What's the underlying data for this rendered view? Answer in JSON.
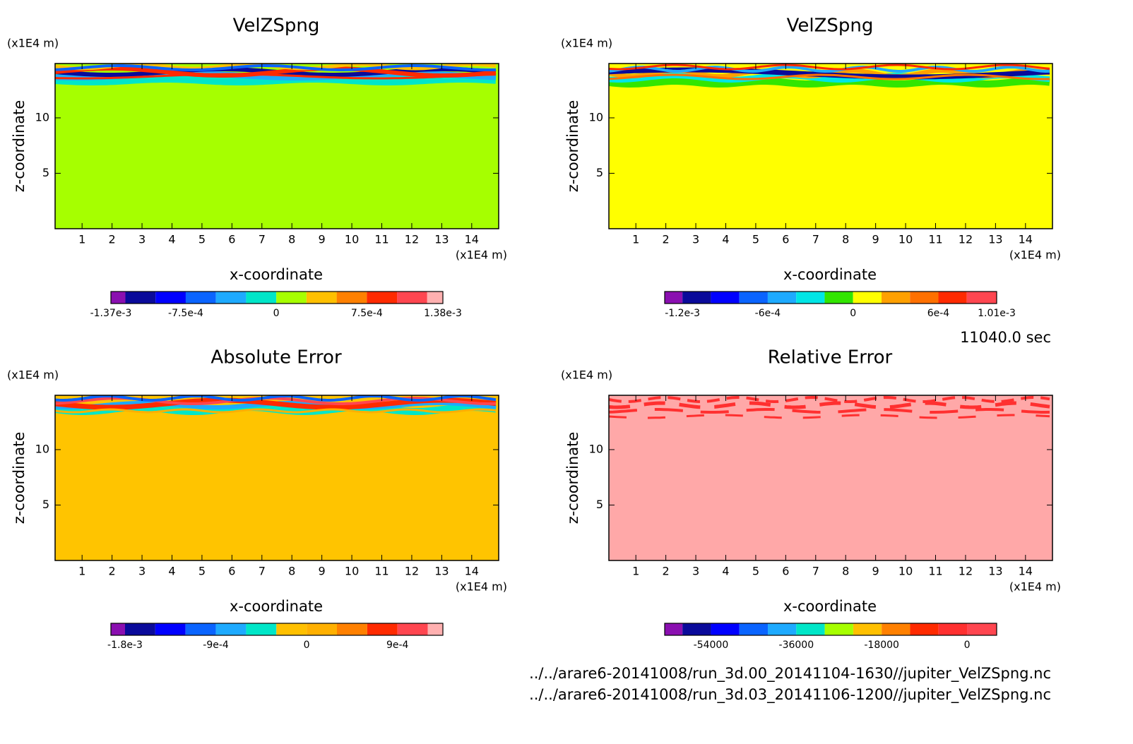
{
  "chart_data": [
    {
      "type": "contour",
      "title": "VelZSpng",
      "x_label": "x-coordinate",
      "y_label": "z-coordinate",
      "x_unit": "(x1E4 m)",
      "y_unit": "(x1E4 m)",
      "xlim": [
        0.1,
        14.9
      ],
      "ylim": [
        0,
        14.9
      ],
      "xticks": [
        1,
        2,
        3,
        4,
        5,
        6,
        7,
        8,
        9,
        10,
        11,
        12,
        13,
        14
      ],
      "yticks": [
        5,
        10
      ],
      "fill_color": "#a6ff00",
      "colorbar": {
        "clim": [
          -0.00137,
          0.00138
        ],
        "levels": [
          -0.00125,
          -0.001,
          -0.00075,
          -0.0005,
          -0.00025,
          0,
          0.00025,
          0.0005,
          0.00075,
          0.001,
          0.00125
        ],
        "colors": [
          "#8a0fb0",
          "#0a0a9a",
          "#0000ff",
          "#0a64ff",
          "#1eaaff",
          "#00e6c8",
          "#a6ff00",
          "#ffc000",
          "#ff8000",
          "#ff2a00",
          "#ff4650",
          "#ffb0b0"
        ],
        "ticks": [
          {
            "value": -0.00137,
            "label": "-1.37e-3"
          },
          {
            "value": -0.00075,
            "label": "-7.5e-4"
          },
          0,
          {
            "value": 0.00075,
            "label": "7.5e-4"
          },
          {
            "value": 0.00138,
            "label": "1.38e-3"
          }
        ]
      }
    },
    {
      "type": "contour",
      "title": "VelZSpng",
      "x_label": "x-coordinate",
      "y_label": "z-coordinate",
      "x_unit": "(x1E4 m)",
      "y_unit": "(x1E4 m)",
      "xlim": [
        0.1,
        14.9
      ],
      "ylim": [
        0,
        14.9
      ],
      "xticks": [
        1,
        2,
        3,
        4,
        5,
        6,
        7,
        8,
        9,
        10,
        11,
        12,
        13,
        14
      ],
      "yticks": [
        5,
        10
      ],
      "fill_color": "#ffff00",
      "colorbar": {
        "clim": [
          -0.001325,
          0.00101
        ],
        "levels": [
          -0.0012,
          -0.001,
          -0.0008,
          -0.0006,
          -0.0004,
          -0.0002,
          0,
          0.0002,
          0.0004,
          0.0006,
          0.0008
        ],
        "colors": [
          "#8a0fb0",
          "#0a0a9a",
          "#0000ff",
          "#0a64ff",
          "#1eaaff",
          "#00e6e6",
          "#32e600",
          "#ffff00",
          "#ffa000",
          "#ff7000",
          "#ff2a00",
          "#ff4650"
        ],
        "ticks": [
          {
            "value": -0.0012,
            "label": "-1.2e-3"
          },
          {
            "value": -0.0006,
            "label": "-6e-4"
          },
          0,
          {
            "value": 0.0006,
            "label": "6e-4"
          },
          {
            "value": 0.00101,
            "label": "1.01e-3"
          }
        ]
      }
    },
    {
      "type": "contour",
      "title": "Absolute Error",
      "x_label": "x-coordinate",
      "y_label": "z-coordinate",
      "x_unit": "(x1E4 m)",
      "y_unit": "(x1E4 m)",
      "xlim": [
        0.1,
        14.9
      ],
      "ylim": [
        0,
        14.9
      ],
      "xticks": [
        1,
        2,
        3,
        4,
        5,
        6,
        7,
        8,
        9,
        10,
        11,
        12,
        13,
        14
      ],
      "yticks": [
        5,
        10
      ],
      "fill_color": "#ffc400",
      "colorbar": {
        "clim": [
          -0.00194,
          0.00135
        ],
        "levels": [
          -0.0018,
          -0.0015,
          -0.0012,
          -0.0009,
          -0.0006,
          -0.0003,
          0,
          0.0003,
          0.0006,
          0.0009,
          0.0012
        ],
        "colors": [
          "#8a0fb0",
          "#0a0a9a",
          "#0000ff",
          "#0a64ff",
          "#1eaaff",
          "#00e6c8",
          "#ffc000",
          "#ffb000",
          "#ff8000",
          "#ff2a00",
          "#ff4650",
          "#ffb0b0"
        ],
        "ticks": [
          {
            "value": -0.0018,
            "label": "-1.8e-3"
          },
          {
            "value": -0.0009,
            "label": "-9e-4"
          },
          0,
          {
            "value": 0.0009,
            "label": "9e-4"
          }
        ]
      }
    },
    {
      "type": "contour",
      "title": "Relative Error",
      "x_label": "x-coordinate",
      "y_label": "z-coordinate",
      "x_unit": "(x1E4 m)",
      "y_unit": "(x1E4 m)",
      "xlim": [
        0.1,
        14.9
      ],
      "ylim": [
        0,
        14.9
      ],
      "xticks": [
        1,
        2,
        3,
        4,
        5,
        6,
        7,
        8,
        9,
        10,
        11,
        12,
        13,
        14
      ],
      "yticks": [
        5,
        10
      ],
      "fill_color": "#ffa8a8",
      "colorbar": {
        "clim": [
          -63750,
          6250
        ],
        "levels": [
          -60000,
          -54000,
          -48000,
          -42000,
          -36000,
          -30000,
          -24000,
          -18000,
          -12000,
          -6000,
          0
        ],
        "colors": [
          "#8a0fb0",
          "#0a0a9a",
          "#0000ff",
          "#0a64ff",
          "#1eaaff",
          "#00e6c8",
          "#a6ff00",
          "#ffc000",
          "#ff8000",
          "#ff2a00",
          "#ff3030",
          "#ff4650"
        ],
        "ticks": [
          -54000,
          -36000,
          -18000,
          0
        ]
      }
    }
  ],
  "annotations": {
    "time": "11040.0 sec",
    "files": [
      "../../arare6-20141008/run_3d.00_20141104-1630//jupiter_VelZSpng.nc",
      "../../arare6-20141008/run_3d.03_20141106-1200//jupiter_VelZSpng.nc"
    ]
  }
}
